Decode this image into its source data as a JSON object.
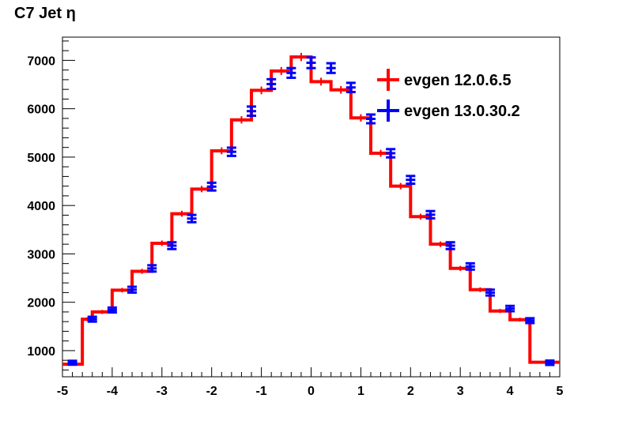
{
  "chart_data": {
    "type": "histogram",
    "title": "C7 Jet η",
    "xlabel": "",
    "ylabel": "",
    "xlim": [
      -5,
      5
    ],
    "ylim": [
      460,
      7480
    ],
    "grid": false,
    "legend_position": "top-right",
    "x_ticks": [
      -5,
      -4,
      -3,
      -2,
      -1,
      0,
      1,
      2,
      3,
      4,
      5
    ],
    "x_tick_labels": [
      "-5",
      "-4",
      "-3",
      "-2",
      "-1",
      "0",
      "1",
      "2",
      "3",
      "4",
      "5"
    ],
    "y_ticks": [
      1000,
      2000,
      3000,
      4000,
      5000,
      6000,
      7000
    ],
    "y_tick_labels": [
      "1000",
      "2000",
      "3000",
      "4000",
      "5000",
      "6000",
      "7000"
    ],
    "bin_edges": [
      -5.0,
      -4.6,
      -4.4,
      -4.0,
      -3.6,
      -3.2,
      -2.8,
      -2.4,
      -2.0,
      -1.6,
      -1.2,
      -0.8,
      -0.4,
      0.0,
      0.4,
      0.8,
      1.2,
      1.6,
      2.0,
      2.4,
      2.8,
      3.2,
      3.6,
      4.0,
      4.4,
      4.6,
      5.0
    ],
    "series": [
      {
        "name": "evgen 12.0.6.5",
        "color": "#ff0000",
        "style": "step",
        "values": [
          720,
          1650,
          1800,
          2250,
          2640,
          3220,
          3830,
          4340,
          5130,
          5770,
          6380,
          6780,
          7070,
          6560,
          6390,
          5810,
          5080,
          4400,
          3770,
          3200,
          2700,
          2260,
          1820,
          1640,
          760,
          760
        ],
        "errors": [
          27,
          41,
          42,
          47,
          51,
          57,
          62,
          66,
          72,
          76,
          80,
          82,
          84,
          81,
          80,
          76,
          71,
          66,
          61,
          57,
          52,
          48,
          43,
          41,
          28,
          28
        ]
      },
      {
        "name": "evgen 13.0.30.2",
        "color": "#0000ff",
        "style": "errorbar",
        "x": [
          -4.8,
          -4.4,
          -4.0,
          -3.6,
          -3.2,
          -2.8,
          -2.4,
          -2.0,
          -1.6,
          -1.2,
          -0.8,
          -0.4,
          0.0,
          0.4,
          0.8,
          1.2,
          1.6,
          2.0,
          2.4,
          2.8,
          3.2,
          3.6,
          4.0,
          4.4,
          4.8
        ],
        "values": [
          750,
          1650,
          1840,
          2260,
          2700,
          3170,
          3730,
          4390,
          5110,
          5950,
          6510,
          6740,
          6950,
          6840,
          6440,
          5790,
          5080,
          4530,
          3810,
          3170,
          2740,
          2200,
          1870,
          1620,
          750
        ],
        "errors": [
          40,
          50,
          50,
          60,
          65,
          70,
          75,
          80,
          85,
          95,
          100,
          100,
          110,
          100,
          95,
          90,
          85,
          80,
          75,
          70,
          65,
          60,
          55,
          50,
          45
        ]
      }
    ]
  }
}
